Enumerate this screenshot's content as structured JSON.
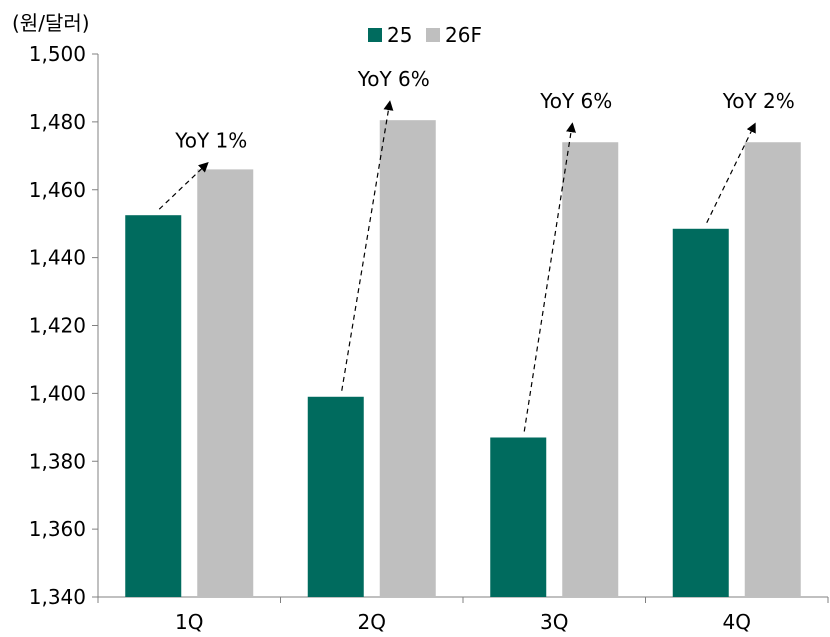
{
  "chart_data": {
    "type": "bar",
    "unit_label": "(원/달러)",
    "categories": [
      "1Q",
      "2Q",
      "3Q",
      "4Q"
    ],
    "series": [
      {
        "name": "25",
        "values": [
          1452.5,
          1399,
          1387,
          1448.5
        ],
        "color": "#006b5e"
      },
      {
        "name": "26F",
        "values": [
          1466,
          1480.5,
          1474,
          1474
        ],
        "color": "#bfbfbf"
      }
    ],
    "ylim": [
      1340,
      1500
    ],
    "yticks": [
      "1,340",
      "1,360",
      "1,380",
      "1,400",
      "1,420",
      "1,440",
      "1,460",
      "1,480",
      "1,500"
    ],
    "ytick_values": [
      1340,
      1360,
      1380,
      1400,
      1420,
      1440,
      1460,
      1480,
      1500
    ],
    "legend_position": "top-center",
    "grid": false,
    "annotations": [
      "YoY 1%",
      "YoY 6%",
      "YoY 6%",
      "YoY 2%"
    ]
  }
}
